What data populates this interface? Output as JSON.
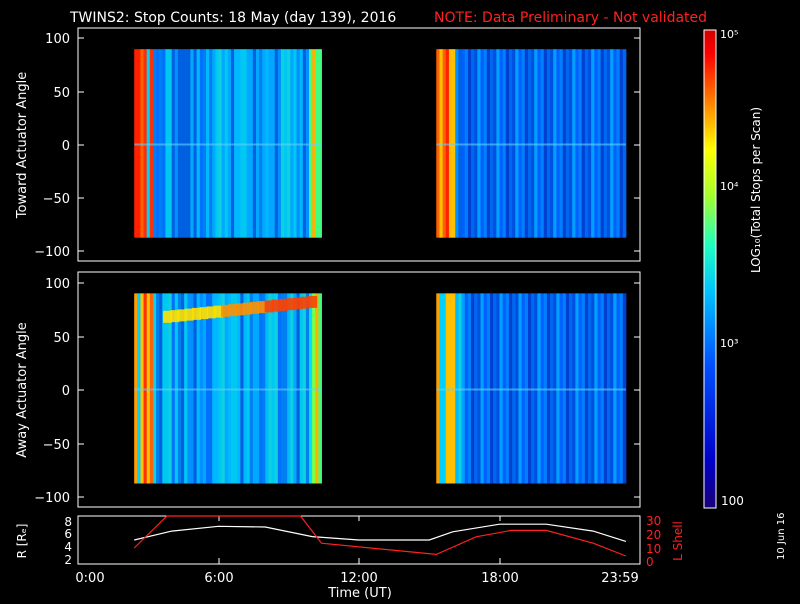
{
  "title": "TWINS2: Stop Counts: 18 May (day 139), 2016",
  "note": "NOTE: Data Preliminary - Not validated",
  "date_stamp": "10 Jun 16",
  "xlabel": "Time (UT)",
  "x_ticks": [
    "0:00",
    "6:00",
    "12:00",
    "18:00",
    "23:59"
  ],
  "colorbar": {
    "label": "LOG₁₀(Total Stops per Scan)",
    "ticks": [
      "100",
      "10³",
      "10⁴",
      "10⁵"
    ],
    "scale": "log",
    "range": [
      100,
      100000
    ]
  },
  "panels": [
    {
      "ylabel": "Toward Actuator Angle",
      "y_ticks": [
        "100",
        "50",
        "0",
        "−50",
        "−100"
      ],
      "ylim": [
        -110,
        110
      ]
    },
    {
      "ylabel": "Away Actuator Angle",
      "y_ticks": [
        "100",
        "50",
        "0",
        "−50",
        "−100"
      ],
      "ylim": [
        -110,
        110
      ]
    }
  ],
  "orbit_panel": {
    "ylabel_left": "R [Rₑ]",
    "ylabel_right": "L Shell",
    "left_ticks": [
      "8",
      "6",
      "4",
      "2"
    ],
    "right_ticks": [
      "30",
      "20",
      "10",
      "0"
    ]
  },
  "chart_data": [
    {
      "type": "heatmap",
      "title": "TWINS2: Stop Counts: 18 May (day 139), 2016",
      "xlabel": "Time (UT)",
      "ylabel": "Toward Actuator Angle",
      "xlim": [
        0,
        24
      ],
      "ylim": [
        -110,
        110
      ],
      "data_coverage_hours": [
        [
          2.4,
          10.4
        ],
        [
          15.3,
          23.4
        ]
      ],
      "angle_range_deg": [
        -88,
        90
      ],
      "value_range_counts": [
        100,
        100000
      ],
      "colors": {
        "low": "#0000a0",
        "mid": "#00c8ff",
        "high": "#ff0000"
      }
    },
    {
      "type": "heatmap",
      "xlabel": "Time (UT)",
      "ylabel": "Away Actuator Angle",
      "xlim": [
        0,
        24
      ],
      "ylim": [
        -110,
        110
      ],
      "data_coverage_hours": [
        [
          2.4,
          10.4
        ],
        [
          15.3,
          23.4
        ]
      ],
      "angle_range_deg": [
        -88,
        90
      ],
      "value_range_counts": [
        100,
        100000
      ]
    },
    {
      "type": "line",
      "xlabel": "Time (UT)",
      "x_ticks": [
        "0:00",
        "6:00",
        "12:00",
        "18:00",
        "23:59"
      ],
      "series": [
        {
          "name": "R [Rₑ]",
          "axis": "left",
          "color": "#ffffff",
          "x": [
            2.4,
            4,
            6,
            8,
            10,
            12,
            14,
            15,
            16,
            18,
            20,
            22,
            23.4
          ],
          "y": [
            5.0,
            6.3,
            7.0,
            6.9,
            5.5,
            5.0,
            5.0,
            5.0,
            6.2,
            7.3,
            7.3,
            6.3,
            4.8
          ]
        },
        {
          "name": "L Shell",
          "axis": "right",
          "color": "#ff2020",
          "x": [
            2.4,
            3.8,
            9.5,
            10.4,
            15.3,
            17,
            18.5,
            20,
            22,
            23.4
          ],
          "y": [
            10,
            30,
            30,
            13,
            6,
            17,
            21,
            21,
            13,
            5
          ]
        }
      ],
      "ylim_left": [
        1.5,
        8.5
      ],
      "ylim_right": [
        0,
        30
      ]
    }
  ]
}
